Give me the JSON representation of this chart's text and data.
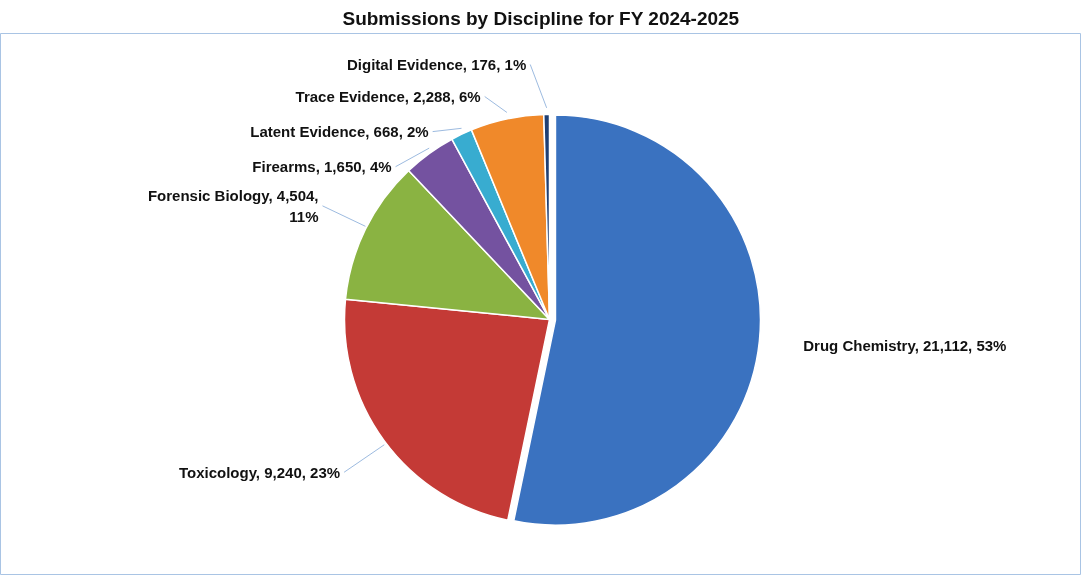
{
  "chart_data": {
    "type": "pie",
    "title": "Submissions by Discipline for FY 2024-2025",
    "categories": [
      "Drug Chemistry",
      "Toxicology",
      "Forensic Biology",
      "Firearms",
      "Latent Evidence",
      "Trace Evidence",
      "Digital Evidence"
    ],
    "values": [
      21112,
      9240,
      4504,
      1650,
      668,
      2288,
      176
    ],
    "value_labels": [
      "21,112, 53%",
      "9,240, 23%",
      "4,504, 11%",
      "1,650, 4%",
      "668, 2%",
      "2,288, 6%",
      "176, 1%"
    ],
    "colors": [
      "#3a72c0",
      "#c43a36",
      "#8ab342",
      "#7452a0",
      "#38acd0",
      "#f0892a",
      "#1f3f73"
    ]
  }
}
